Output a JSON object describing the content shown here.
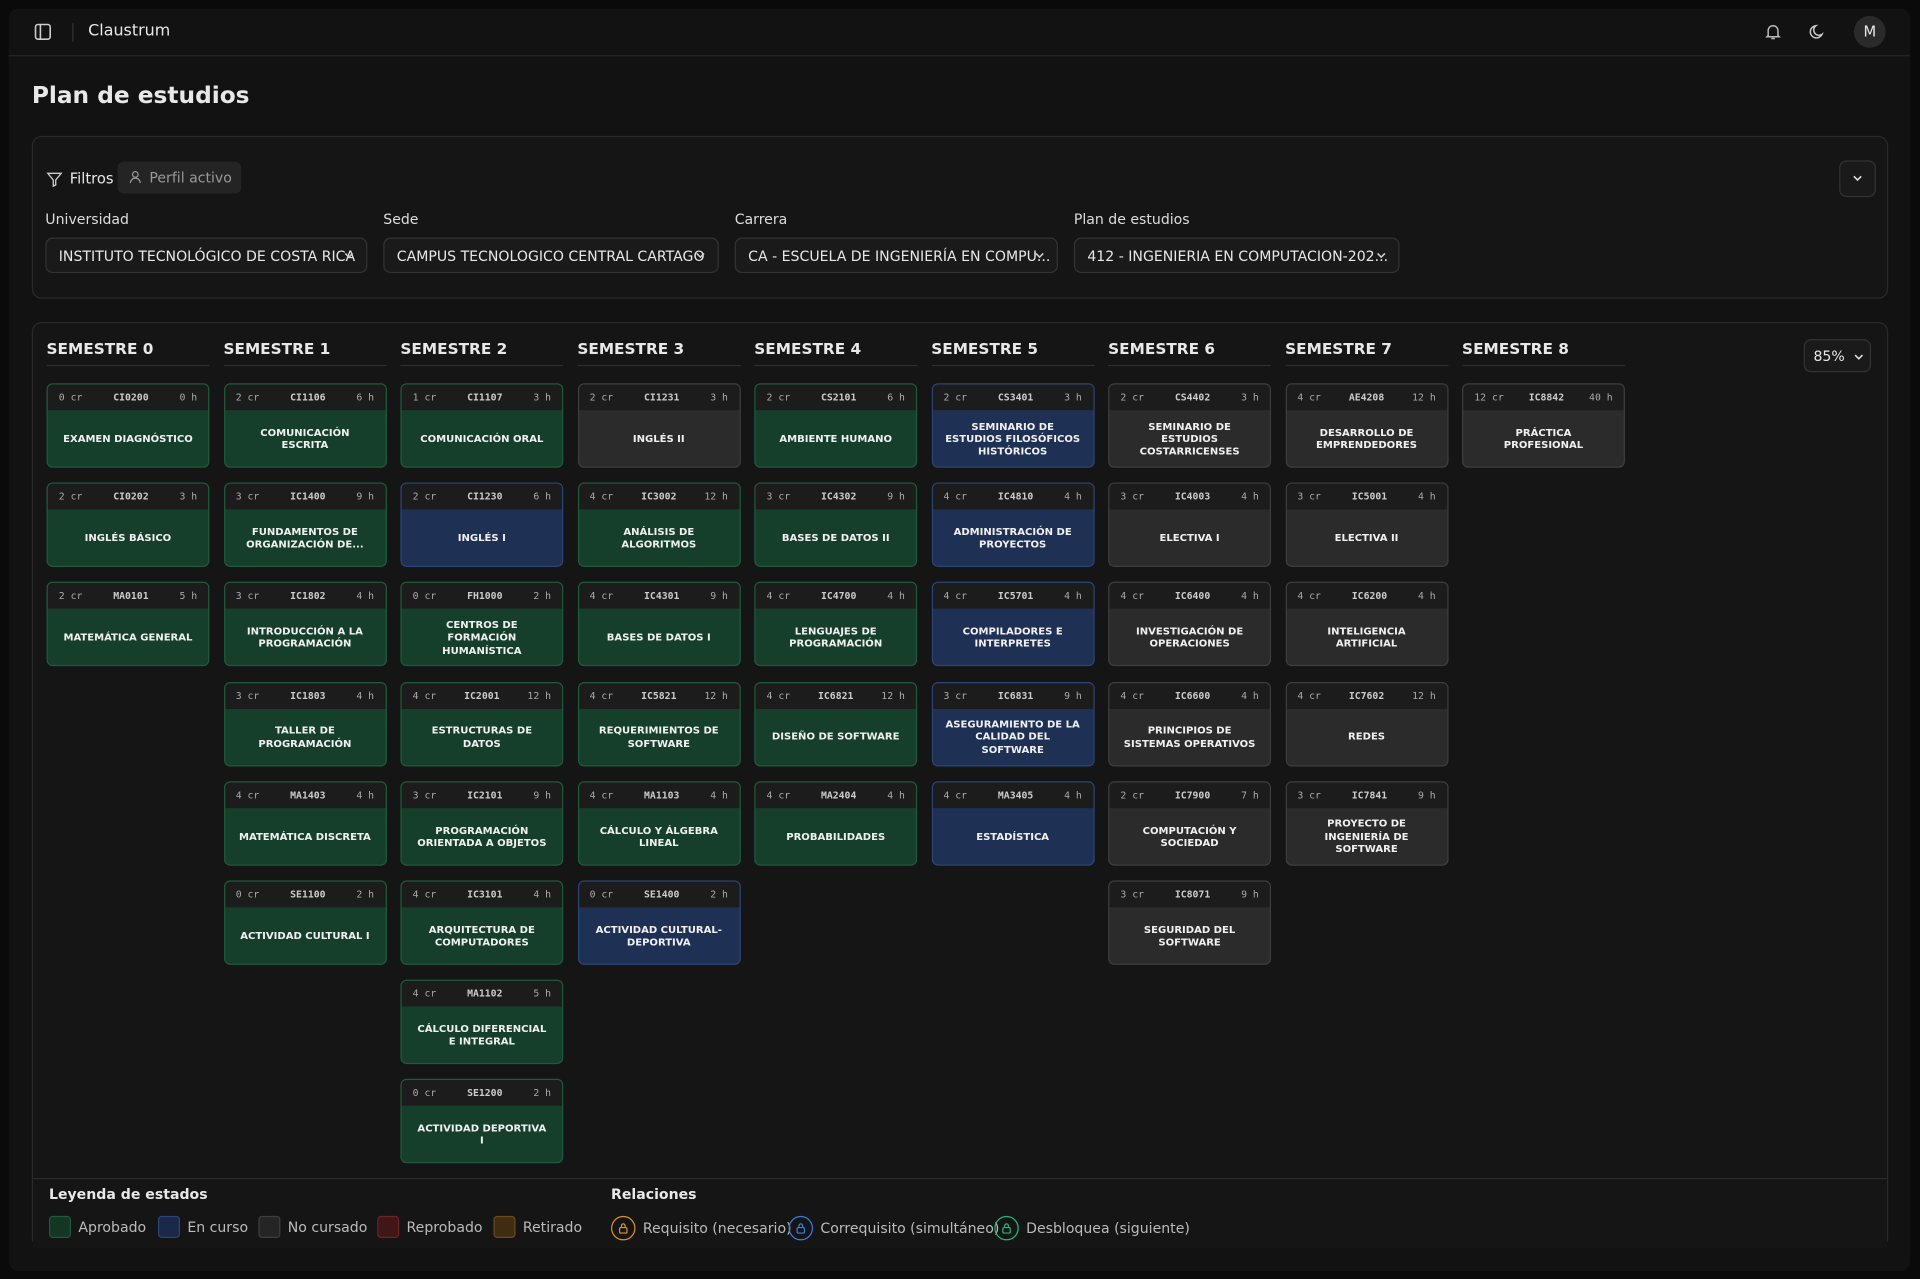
{
  "header": {
    "app_name": "Claustrum",
    "avatar": "M"
  },
  "page_title": "Plan de estudios",
  "filters": {
    "label": "Filtros",
    "profile_badge": "Perfil activo",
    "fields": [
      {
        "label": "Universidad",
        "value": "INSTITUTO TECNOLÓGICO DE COSTA RICA"
      },
      {
        "label": "Sede",
        "value": "CAMPUS TECNOLOGICO CENTRAL CARTAGO"
      },
      {
        "label": "Carrera",
        "value": "CA - ESCUELA DE INGENIERÍA EN COMPU..."
      },
      {
        "label": "Plan de estudios",
        "value": "412 - INGENIERIA EN COMPUTACION-202..."
      }
    ]
  },
  "zoom": "85%",
  "semesters": [
    {
      "title": "SEMESTRE 0",
      "courses": [
        {
          "credits": "0 cr",
          "code": "CI0200",
          "hours": "0 h",
          "name": "EXAMEN DIAGNÓSTICO",
          "state": "Aprobado"
        },
        {
          "credits": "2 cr",
          "code": "CI0202",
          "hours": "3 h",
          "name": "INGLÉS BÁSICO",
          "state": "Aprobado"
        },
        {
          "credits": "2 cr",
          "code": "MA0101",
          "hours": "5 h",
          "name": "MATEMÁTICA GENERAL",
          "state": "Aprobado"
        }
      ]
    },
    {
      "title": "SEMESTRE 1",
      "courses": [
        {
          "credits": "2 cr",
          "code": "CI1106",
          "hours": "6 h",
          "name": "COMUNICACIÓN ESCRITA",
          "state": "Aprobado"
        },
        {
          "credits": "3 cr",
          "code": "IC1400",
          "hours": "9 h",
          "name": "FUNDAMENTOS DE ORGANIZACIÓN DE...",
          "state": "Aprobado"
        },
        {
          "credits": "3 cr",
          "code": "IC1802",
          "hours": "4 h",
          "name": "INTRODUCCIÓN A LA PROGRAMACIÓN",
          "state": "Aprobado"
        },
        {
          "credits": "3 cr",
          "code": "IC1803",
          "hours": "4 h",
          "name": "TALLER DE PROGRAMACIÓN",
          "state": "Aprobado"
        },
        {
          "credits": "4 cr",
          "code": "MA1403",
          "hours": "4 h",
          "name": "MATEMÁTICA DISCRETA",
          "state": "Aprobado"
        },
        {
          "credits": "0 cr",
          "code": "SE1100",
          "hours": "2 h",
          "name": "ACTIVIDAD CULTURAL I",
          "state": "Aprobado"
        }
      ]
    },
    {
      "title": "SEMESTRE 2",
      "courses": [
        {
          "credits": "1 cr",
          "code": "CI1107",
          "hours": "3 h",
          "name": "COMUNICACIÓN ORAL",
          "state": "Aprobado"
        },
        {
          "credits": "2 cr",
          "code": "CI1230",
          "hours": "6 h",
          "name": "INGLÉS I",
          "state": "En curso"
        },
        {
          "credits": "0 cr",
          "code": "FH1000",
          "hours": "2 h",
          "name": "CENTROS DE FORMACIÓN HUMANÍSTICA",
          "state": "Aprobado"
        },
        {
          "credits": "4 cr",
          "code": "IC2001",
          "hours": "12 h",
          "name": "ESTRUCTURAS DE DATOS",
          "state": "Aprobado"
        },
        {
          "credits": "3 cr",
          "code": "IC2101",
          "hours": "9 h",
          "name": "PROGRAMACIÓN ORIENTADA A OBJETOS",
          "state": "Aprobado"
        },
        {
          "credits": "4 cr",
          "code": "IC3101",
          "hours": "4 h",
          "name": "ARQUITECTURA DE COMPUTADORES",
          "state": "Aprobado"
        },
        {
          "credits": "4 cr",
          "code": "MA1102",
          "hours": "5 h",
          "name": "CÁLCULO DIFERENCIAL E INTEGRAL",
          "state": "Aprobado"
        },
        {
          "credits": "0 cr",
          "code": "SE1200",
          "hours": "2 h",
          "name": "ACTIVIDAD DEPORTIVA I",
          "state": "Aprobado"
        }
      ]
    },
    {
      "title": "SEMESTRE 3",
      "courses": [
        {
          "credits": "2 cr",
          "code": "CI1231",
          "hours": "3 h",
          "name": "INGLÉS II",
          "state": "No cursado"
        },
        {
          "credits": "4 cr",
          "code": "IC3002",
          "hours": "12 h",
          "name": "ANÁLISIS DE ALGORITMOS",
          "state": "Aprobado"
        },
        {
          "credits": "4 cr",
          "code": "IC4301",
          "hours": "9 h",
          "name": "BASES DE DATOS I",
          "state": "Aprobado"
        },
        {
          "credits": "4 cr",
          "code": "IC5821",
          "hours": "12 h",
          "name": "REQUERIMIENTOS DE SOFTWARE",
          "state": "Aprobado"
        },
        {
          "credits": "4 cr",
          "code": "MA1103",
          "hours": "4 h",
          "name": "CÁLCULO Y ÁLGEBRA LINEAL",
          "state": "Aprobado"
        },
        {
          "credits": "0 cr",
          "code": "SE1400",
          "hours": "2 h",
          "name": "ACTIVIDAD CULTURAL-DEPORTIVA",
          "state": "En curso"
        }
      ]
    },
    {
      "title": "SEMESTRE 4",
      "courses": [
        {
          "credits": "2 cr",
          "code": "CS2101",
          "hours": "6 h",
          "name": "AMBIENTE HUMANO",
          "state": "Aprobado"
        },
        {
          "credits": "3 cr",
          "code": "IC4302",
          "hours": "9 h",
          "name": "BASES DE DATOS II",
          "state": "Aprobado"
        },
        {
          "credits": "4 cr",
          "code": "IC4700",
          "hours": "4 h",
          "name": "LENGUAJES DE PROGRAMACIÓN",
          "state": "Aprobado"
        },
        {
          "credits": "4 cr",
          "code": "IC6821",
          "hours": "12 h",
          "name": "DISEÑO DE SOFTWARE",
          "state": "Aprobado"
        },
        {
          "credits": "4 cr",
          "code": "MA2404",
          "hours": "4 h",
          "name": "PROBABILIDADES",
          "state": "Aprobado"
        }
      ]
    },
    {
      "title": "SEMESTRE 5",
      "courses": [
        {
          "credits": "2 cr",
          "code": "CS3401",
          "hours": "3 h",
          "name": "SEMINARIO DE ESTUDIOS FILOSÓFICOS HISTÓRICOS",
          "state": "En curso"
        },
        {
          "credits": "4 cr",
          "code": "IC4810",
          "hours": "4 h",
          "name": "ADMINISTRACIÓN DE PROYECTOS",
          "state": "En curso"
        },
        {
          "credits": "4 cr",
          "code": "IC5701",
          "hours": "4 h",
          "name": "COMPILADORES E INTERPRETES",
          "state": "En curso"
        },
        {
          "credits": "3 cr",
          "code": "IC6831",
          "hours": "9 h",
          "name": "ASEGURAMIENTO DE LA CALIDAD DEL SOFTWARE",
          "state": "En curso"
        },
        {
          "credits": "4 cr",
          "code": "MA3405",
          "hours": "4 h",
          "name": "ESTADÍSTICA",
          "state": "En curso"
        }
      ]
    },
    {
      "title": "SEMESTRE 6",
      "courses": [
        {
          "credits": "2 cr",
          "code": "CS4402",
          "hours": "3 h",
          "name": "SEMINARIO DE ESTUDIOS COSTARRICENSES",
          "state": "No cursado"
        },
        {
          "credits": "3 cr",
          "code": "IC4003",
          "hours": "4 h",
          "name": "ELECTIVA I",
          "state": "No cursado"
        },
        {
          "credits": "4 cr",
          "code": "IC6400",
          "hours": "4 h",
          "name": "INVESTIGACIÓN DE OPERACIONES",
          "state": "No cursado"
        },
        {
          "credits": "4 cr",
          "code": "IC6600",
          "hours": "4 h",
          "name": "PRINCIPIOS DE SISTEMAS OPERATIVOS",
          "state": "No cursado"
        },
        {
          "credits": "2 cr",
          "code": "IC7900",
          "hours": "7 h",
          "name": "COMPUTACIÓN Y SOCIEDAD",
          "state": "No cursado"
        },
        {
          "credits": "3 cr",
          "code": "IC8071",
          "hours": "9 h",
          "name": "SEGURIDAD DEL SOFTWARE",
          "state": "No cursado"
        }
      ]
    },
    {
      "title": "SEMESTRE 7",
      "courses": [
        {
          "credits": "4 cr",
          "code": "AE4208",
          "hours": "12 h",
          "name": "DESARROLLO DE EMPRENDEDORES",
          "state": "No cursado"
        },
        {
          "credits": "3 cr",
          "code": "IC5001",
          "hours": "4 h",
          "name": "ELECTIVA II",
          "state": "No cursado"
        },
        {
          "credits": "4 cr",
          "code": "IC6200",
          "hours": "4 h",
          "name": "INTELIGENCIA ARTIFICIAL",
          "state": "No cursado"
        },
        {
          "credits": "4 cr",
          "code": "IC7602",
          "hours": "12 h",
          "name": "REDES",
          "state": "No cursado"
        },
        {
          "credits": "3 cr",
          "code": "IC7841",
          "hours": "9 h",
          "name": "PROYECTO DE INGENIERÍA DE SOFTWARE",
          "state": "No cursado"
        }
      ]
    },
    {
      "title": "SEMESTRE 8",
      "courses": [
        {
          "credits": "12 cr",
          "code": "IC8842",
          "hours": "40 h",
          "name": "PRÁCTICA PROFESIONAL",
          "state": "No cursado"
        }
      ]
    }
  ],
  "legend": {
    "title": "Leyenda de estados",
    "items": [
      {
        "label": "Aprobado",
        "color": "#1f5a3d"
      },
      {
        "label": "En curso",
        "color": "#2b4577"
      },
      {
        "label": "No cursado",
        "color": "#3e3e3e"
      },
      {
        "label": "Reprobado",
        "color": "#6b2424"
      },
      {
        "label": "Retirado",
        "color": "#6b4a1c"
      }
    ]
  },
  "relations": {
    "title": "Relaciones",
    "items": [
      {
        "label": "Requisito (necesario)",
        "color": "#e0902a"
      },
      {
        "label": "Correquisito (simultáneo)",
        "color": "#3b7be0"
      },
      {
        "label": "Desbloquea (siguiente)",
        "color": "#22b87a"
      }
    ]
  }
}
